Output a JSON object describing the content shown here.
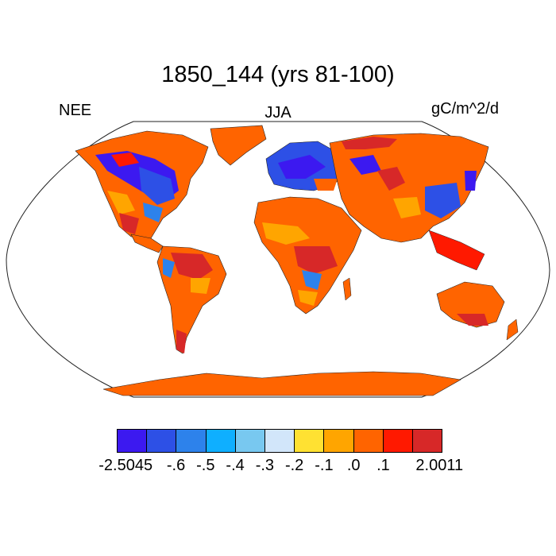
{
  "title": "1850_144 (yrs 81-100)",
  "left_label": "NEE",
  "center_label": "JJA",
  "right_label": "gC/m^2/d",
  "colorbar": {
    "colors": [
      "#3c19f0",
      "#2d50e6",
      "#2d82eb",
      "#0fafff",
      "#78c8f0",
      "#d2e6fa",
      "#ffe132",
      "#ffa500",
      "#ff6400",
      "#ff1900",
      "#d72828"
    ],
    "tick_labels": [
      "-2.5045",
      "-.6",
      "-.5",
      "-.4",
      "-.3",
      "-.2",
      "-.1",
      ".0",
      ".1",
      "2.0011"
    ]
  }
}
